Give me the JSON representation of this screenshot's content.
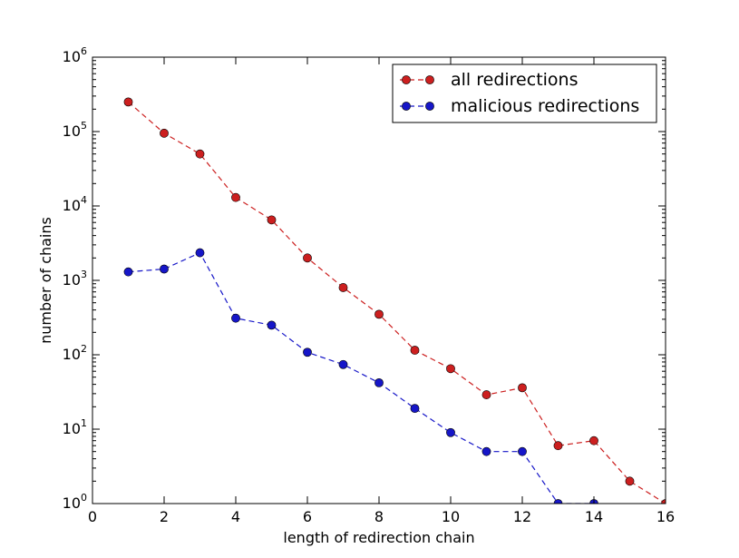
{
  "chart_data": {
    "type": "line",
    "title": "",
    "xlabel": "length of redirection chain",
    "ylabel": "number of chains",
    "xlim": [
      0,
      16
    ],
    "ylim": [
      1,
      1000000
    ],
    "yscale": "log",
    "grid": false,
    "legend_position": "top-right",
    "x_ticks": [
      "0",
      "2",
      "4",
      "6",
      "8",
      "10",
      "12",
      "14",
      "16"
    ],
    "y_ticks": [
      {
        "base": "10",
        "exp": "0"
      },
      {
        "base": "10",
        "exp": "1"
      },
      {
        "base": "10",
        "exp": "2"
      },
      {
        "base": "10",
        "exp": "3"
      },
      {
        "base": "10",
        "exp": "4"
      },
      {
        "base": "10",
        "exp": "5"
      },
      {
        "base": "10",
        "exp": "6"
      }
    ],
    "series": [
      {
        "name": "all redirections",
        "color": "#cc1f1f",
        "x": [
          1,
          2,
          3,
          4,
          5,
          6,
          7,
          8,
          9,
          10,
          11,
          12,
          13,
          14,
          15,
          16
        ],
        "y": [
          250000,
          95000,
          50000,
          13000,
          6500,
          2000,
          800,
          350,
          115,
          65,
          29,
          36,
          6,
          7,
          2,
          1
        ]
      },
      {
        "name": "malicious redirections",
        "color": "#1616c8",
        "x": [
          1,
          2,
          3,
          4,
          5,
          6,
          7,
          8,
          9,
          10,
          11,
          12,
          13,
          14
        ],
        "y": [
          1300,
          1420,
          2350,
          310,
          250,
          108,
          74,
          42,
          19,
          9,
          5,
          5,
          1,
          1
        ]
      }
    ]
  }
}
